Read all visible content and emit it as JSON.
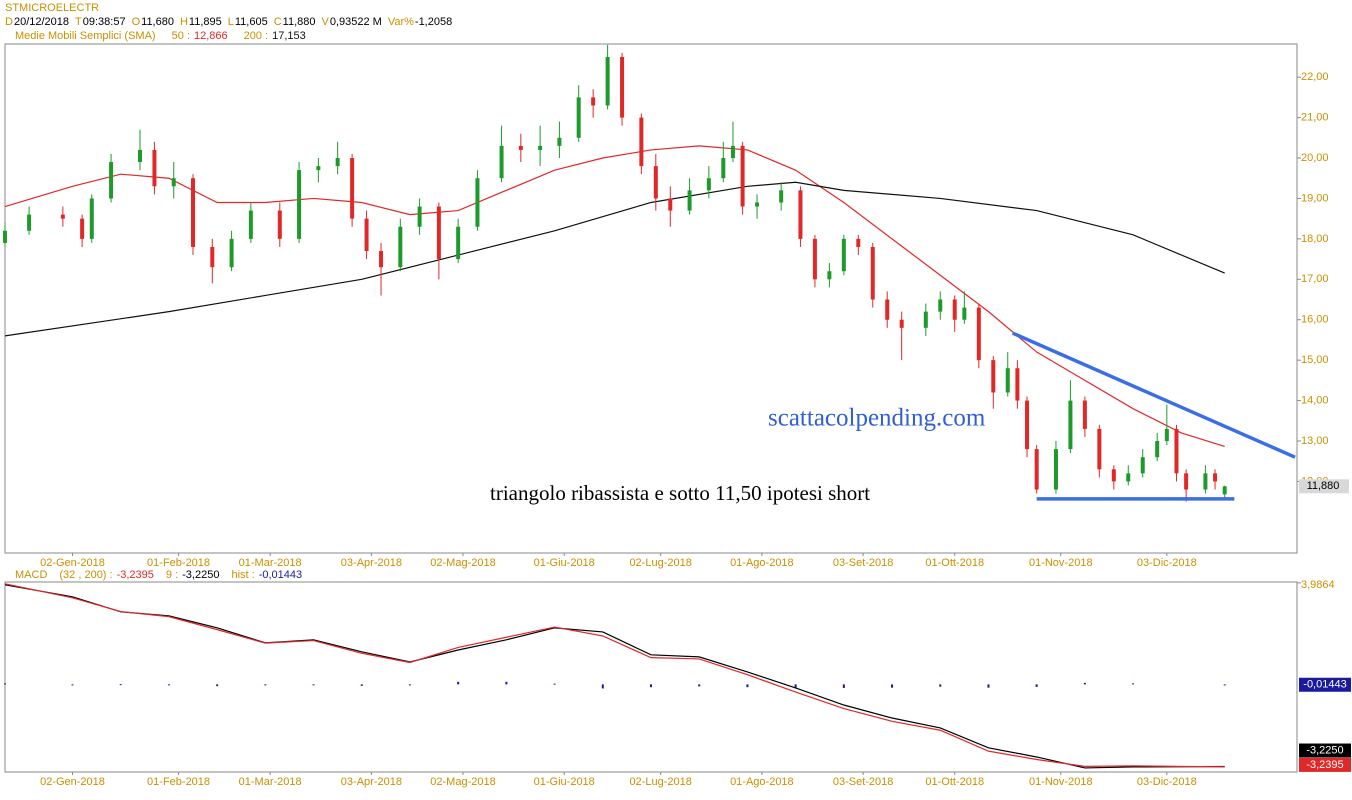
{
  "chart_data": [
    {
      "type": "candlestick",
      "title": "STMICROELECTR",
      "quote": [
        {
          "label": "D",
          "value": "20/12/2018"
        },
        {
          "label": "T",
          "value": "09:38:57"
        },
        {
          "label": "O",
          "value": "11,680"
        },
        {
          "label": "H",
          "value": "11,895"
        },
        {
          "label": "L",
          "value": "11,605"
        },
        {
          "label": "C",
          "value": "11,880"
        },
        {
          "label": "V",
          "value": "0,93522 M"
        },
        {
          "label": "Var%",
          "value": "-1,2058"
        }
      ],
      "overlay_title": "Medie Mobili Semplici (SMA)",
      "x": [
        -14,
        -9,
        -2,
        2,
        4,
        8,
        14,
        17,
        21,
        25,
        29,
        33,
        37,
        43,
        47,
        51,
        55,
        58,
        61,
        64,
        68,
        72,
        76,
        80,
        84,
        89,
        93,
        97,
        101,
        105,
        108,
        111,
        114,
        118,
        121,
        124,
        128,
        132,
        135,
        137,
        139,
        142,
        147,
        151,
        154,
        157,
        160,
        163,
        166,
        169,
        172,
        177,
        180,
        183,
        185,
        188,
        191,
        194,
        196,
        198,
        200,
        204,
        207,
        210,
        213,
        216,
        219,
        222,
        225,
        227,
        229,
        231,
        235,
        237,
        239
      ],
      "open": [
        17.9,
        18.2,
        18.6,
        18.5,
        18.0,
        19.0,
        19.9,
        20.2,
        19.3,
        19.5,
        17.8,
        17.3,
        18.0,
        18.7,
        18.0,
        19.7,
        19.8,
        20.0,
        18.5,
        17.7,
        17.3,
        18.3,
        18.8,
        17.5,
        18.3,
        19.5,
        20.3,
        20.2,
        20.3,
        20.5,
        21.5,
        21.3,
        22.5,
        21.0,
        19.8,
        19.0,
        18.7,
        19.2,
        19.5,
        20.0,
        20.3,
        18.8,
        18.9,
        19.2,
        18.0,
        17.0,
        17.2,
        18.0,
        17.8,
        16.5,
        16.0,
        15.8,
        16.2,
        16.5,
        16.0,
        16.3,
        15.0,
        14.2,
        14.8,
        14.0,
        12.8,
        11.8,
        12.8,
        14.0,
        13.3,
        12.3,
        12.0,
        12.2,
        12.6,
        13.0,
        13.3,
        12.2,
        11.8,
        12.2,
        11.68
      ],
      "high": [
        18.4,
        18.8,
        18.8,
        18.6,
        19.1,
        20.1,
        20.7,
        20.4,
        19.9,
        19.6,
        18.0,
        18.2,
        18.9,
        18.9,
        19.9,
        20.0,
        20.4,
        20.1,
        18.7,
        17.9,
        18.5,
        19.0,
        18.9,
        18.5,
        19.7,
        20.8,
        20.6,
        20.8,
        20.9,
        21.8,
        21.7,
        22.8,
        22.6,
        21.1,
        20.1,
        19.3,
        19.5,
        19.8,
        20.4,
        20.9,
        20.4,
        19.1,
        19.4,
        19.3,
        18.1,
        17.4,
        18.1,
        18.1,
        17.9,
        16.7,
        16.2,
        16.4,
        16.7,
        16.6,
        16.7,
        16.4,
        15.1,
        15.2,
        15.0,
        14.1,
        12.9,
        13.0,
        14.5,
        14.1,
        13.4,
        12.4,
        12.4,
        12.8,
        13.2,
        13.9,
        13.4,
        12.3,
        12.4,
        12.3,
        11.895
      ],
      "low": [
        17.8,
        18.1,
        18.3,
        17.8,
        17.9,
        18.9,
        19.7,
        19.1,
        19.0,
        17.6,
        16.9,
        17.2,
        17.9,
        17.8,
        17.9,
        19.4,
        19.6,
        18.3,
        17.5,
        16.6,
        17.2,
        18.1,
        17.0,
        17.4,
        18.2,
        19.4,
        19.9,
        19.8,
        20.0,
        20.4,
        21.0,
        21.2,
        20.8,
        19.6,
        18.7,
        18.3,
        18.6,
        19.0,
        19.4,
        19.9,
        18.6,
        18.5,
        18.7,
        17.8,
        16.8,
        16.8,
        17.1,
        17.6,
        16.3,
        15.8,
        15.0,
        15.6,
        16.0,
        15.7,
        15.9,
        14.8,
        13.8,
        14.1,
        13.8,
        12.6,
        11.7,
        11.7,
        12.7,
        13.1,
        12.1,
        11.8,
        11.9,
        12.1,
        12.5,
        12.9,
        12.0,
        11.5,
        11.7,
        11.8,
        11.605
      ],
      "close": [
        18.2,
        18.6,
        18.5,
        18.0,
        19.0,
        19.9,
        20.2,
        19.3,
        19.5,
        17.8,
        17.3,
        18.0,
        18.7,
        18.0,
        19.7,
        19.8,
        20.0,
        18.5,
        17.7,
        17.3,
        18.3,
        18.8,
        17.5,
        18.3,
        19.5,
        20.3,
        20.2,
        20.3,
        20.5,
        21.5,
        21.3,
        22.5,
        21.0,
        19.8,
        19.0,
        18.7,
        19.2,
        19.5,
        20.0,
        20.3,
        18.8,
        18.9,
        19.2,
        18.0,
        17.0,
        17.2,
        18.0,
        17.8,
        16.5,
        16.0,
        15.8,
        16.2,
        16.5,
        16.0,
        16.3,
        15.0,
        14.2,
        14.8,
        14.0,
        12.8,
        11.8,
        12.8,
        14.0,
        13.3,
        12.3,
        12.0,
        12.2,
        12.6,
        13.0,
        13.3,
        12.2,
        11.8,
        12.2,
        12.0,
        11.88
      ],
      "close_label": "11,880",
      "up_color": "#1e9a2a",
      "down_color": "#e02828",
      "series": [
        {
          "name": "50 :",
          "color": "#e02828",
          "value_label": "12,866",
          "x": [
            -14,
            0,
            10,
            20,
            30,
            40,
            50,
            60,
            70,
            80,
            90,
            100,
            110,
            120,
            130,
            140,
            150,
            160,
            170,
            180,
            190,
            200,
            210,
            220,
            230,
            239
          ],
          "values": [
            18.8,
            19.3,
            19.6,
            19.5,
            18.9,
            18.9,
            19.0,
            18.9,
            18.6,
            18.7,
            19.2,
            19.7,
            20.0,
            20.2,
            20.3,
            20.2,
            19.7,
            18.9,
            18.0,
            17.1,
            16.2,
            15.2,
            14.5,
            13.8,
            13.2,
            12.866
          ]
        },
        {
          "name": "200 :",
          "color": "#111111",
          "value_label": "17,153",
          "x": [
            -14,
            20,
            40,
            60,
            80,
            100,
            120,
            140,
            150,
            160,
            180,
            200,
            220,
            239
          ],
          "values": [
            15.6,
            16.2,
            16.6,
            17.0,
            17.6,
            18.2,
            18.9,
            19.3,
            19.4,
            19.2,
            19.0,
            18.7,
            18.1,
            17.153
          ]
        }
      ],
      "trendlines": [
        {
          "color": "#3a6ee8",
          "x": [
            195,
            253.6
          ],
          "y": [
            15.67,
            12.6
          ]
        },
        {
          "color": "#3a6ee8",
          "x": [
            200,
            241
          ],
          "y": [
            11.57,
            11.57
          ]
        }
      ],
      "annotations": [
        {
          "text": "scattacolpending.com",
          "color": "#2f5ed8"
        },
        {
          "text": "triangolo ribassista e sotto 11,50 ipotesi short",
          "color": "#000000"
        }
      ],
      "xlim": [
        -14,
        254
      ],
      "xticks": [
        {
          "value": 0,
          "label": "02-Gen-2018"
        },
        {
          "value": 22,
          "label": "01-Feb-2018"
        },
        {
          "value": 41,
          "label": "01-Mar-2018"
        },
        {
          "value": 62,
          "label": "03-Apr-2018"
        },
        {
          "value": 81,
          "label": "02-Mag-2018"
        },
        {
          "value": 102,
          "label": "01-Giu-2018"
        },
        {
          "value": 122,
          "label": "02-Lug-2018"
        },
        {
          "value": 143,
          "label": "01-Ago-2018"
        },
        {
          "value": 164,
          "label": "03-Set-2018"
        },
        {
          "value": 183,
          "label": "01-Ott-2018"
        },
        {
          "value": 205,
          "label": "01-Nov-2018"
        },
        {
          "value": 227,
          "label": "03-Dic-2018"
        }
      ],
      "ylim": [
        10.23,
        22.82
      ],
      "yticks": [
        {
          "value": 12,
          "label": "12,00"
        },
        {
          "value": 13,
          "label": "13,00"
        },
        {
          "value": 14,
          "label": "14,00"
        },
        {
          "value": 15,
          "label": "15,00"
        },
        {
          "value": 16,
          "label": "16,00"
        },
        {
          "value": 17,
          "label": "17,00"
        },
        {
          "value": 18,
          "label": "18,00"
        },
        {
          "value": 19,
          "label": "19,00"
        },
        {
          "value": 20,
          "label": "20,00"
        },
        {
          "value": 21,
          "label": "21,00"
        },
        {
          "value": 22,
          "label": "22,00"
        }
      ]
    },
    {
      "type": "macd",
      "title": "MACD",
      "x": [
        -14,
        0,
        10,
        20,
        30,
        40,
        50,
        60,
        70,
        80,
        90,
        100,
        110,
        120,
        130,
        140,
        150,
        160,
        170,
        180,
        190,
        200,
        210,
        220,
        239
      ],
      "series": [
        {
          "name": "(32 , 200) :",
          "color": "#e02828",
          "value_label": "-3,2395",
          "values": [
            3.95,
            3.4,
            2.86,
            2.66,
            2.15,
            1.62,
            1.72,
            1.22,
            0.86,
            1.45,
            1.85,
            2.25,
            1.9,
            1.05,
            1.0,
            0.38,
            -0.3,
            -0.95,
            -1.45,
            -1.8,
            -2.62,
            -2.95,
            -3.22,
            -3.2,
            -3.2395
          ]
        },
        {
          "name": "9 :",
          "color": "#000000",
          "value_label": "-3,2250",
          "values": [
            3.91,
            3.44,
            2.85,
            2.69,
            2.22,
            1.63,
            1.75,
            1.28,
            0.88,
            1.35,
            1.75,
            2.22,
            2.06,
            1.16,
            1.08,
            0.49,
            -0.14,
            -0.81,
            -1.32,
            -1.71,
            -2.49,
            -2.85,
            -3.28,
            -3.24,
            -3.225
          ]
        },
        {
          "name": "hist :",
          "color": "#1a1a9c",
          "value_label": "-0,01443",
          "values": [
            0.04,
            -0.04,
            0.01,
            -0.03,
            -0.07,
            -0.01,
            -0.03,
            -0.06,
            -0.02,
            0.1,
            0.1,
            0.03,
            -0.16,
            -0.11,
            -0.08,
            -0.11,
            -0.16,
            -0.14,
            -0.13,
            -0.09,
            -0.13,
            -0.1,
            0.06,
            0.04,
            -0.01443
          ]
        }
      ],
      "xlim": [
        -14,
        254
      ],
      "xticks": [
        {
          "value": 0,
          "label": "02-Gen-2018"
        },
        {
          "value": 22,
          "label": "01-Feb-2018"
        },
        {
          "value": 41,
          "label": "01-Mar-2018"
        },
        {
          "value": 62,
          "label": "03-Apr-2018"
        },
        {
          "value": 81,
          "label": "02-Mag-2018"
        },
        {
          "value": 102,
          "label": "01-Giu-2018"
        },
        {
          "value": 122,
          "label": "02-Lug-2018"
        },
        {
          "value": 143,
          "label": "01-Ago-2018"
        },
        {
          "value": 164,
          "label": "03-Set-2018"
        },
        {
          "value": 183,
          "label": "01-Ott-2018"
        },
        {
          "value": 205,
          "label": "01-Nov-2018"
        },
        {
          "value": 227,
          "label": "03-Dic-2018"
        }
      ],
      "ylim": [
        -3.44,
        4.02
      ],
      "yticks": [
        {
          "value": 3.9864,
          "label": "3,9864"
        }
      ]
    }
  ]
}
